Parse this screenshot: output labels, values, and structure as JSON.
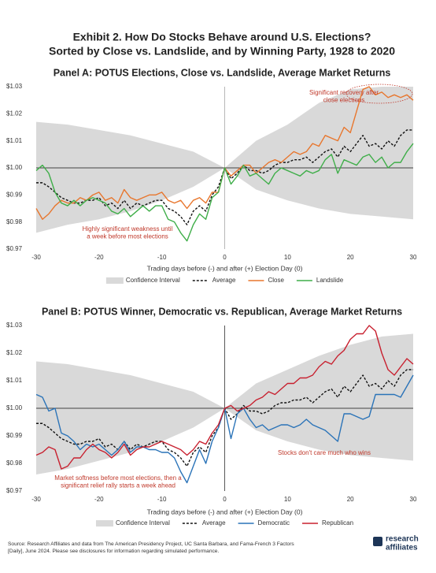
{
  "title": [
    "Exhibit 2. How Do Stocks Behave around U.S. Elections?",
    "Sorted by Close vs. Landslide, and by Winning Party, 1928 to 2020"
  ],
  "chart_data": [
    {
      "type": "line",
      "title": "Panel A: POTUS Elections, Close vs. Landslide, Average Market Returns",
      "xlabel": "Trading days before (-) and after (+) Election Day (0)",
      "x": [
        -30,
        -29,
        -28,
        -27,
        -26,
        -25,
        -24,
        -23,
        -22,
        -21,
        -20,
        -19,
        -18,
        -17,
        -16,
        -15,
        -14,
        -13,
        -12,
        -11,
        -10,
        -9,
        -8,
        -7,
        -6,
        -5,
        -4,
        -3,
        -2,
        -1,
        0,
        1,
        2,
        3,
        4,
        5,
        6,
        7,
        8,
        9,
        10,
        11,
        12,
        13,
        14,
        15,
        16,
        17,
        18,
        19,
        20,
        21,
        22,
        23,
        24,
        25,
        26,
        27,
        28,
        29,
        30
      ],
      "xlim": [
        -30,
        30
      ],
      "xticks": [
        -30,
        -20,
        -10,
        0,
        10,
        20,
        30
      ],
      "ylim": [
        0.97,
        1.03
      ],
      "yticks": [
        {
          "value": 0.97,
          "label": "$0.97"
        },
        {
          "value": 0.98,
          "label": "$0.98"
        },
        {
          "value": 0.99,
          "label": "$0.99"
        },
        {
          "value": 1.0,
          "label": "$1.00"
        },
        {
          "value": 1.01,
          "label": "$1.01"
        },
        {
          "value": 1.02,
          "label": "$1.02"
        },
        {
          "value": 1.03,
          "label": "$1.03"
        }
      ],
      "band": {
        "name": "Confidence Interval",
        "color": "#d9d9d9",
        "x": [
          -30,
          -25,
          -20,
          -15,
          -10,
          -5,
          0,
          5,
          10,
          15,
          20,
          25,
          30
        ],
        "upper": [
          1.017,
          1.016,
          1.014,
          1.012,
          1.009,
          1.006,
          1.0,
          1.01,
          1.016,
          1.024,
          1.029,
          1.03,
          1.03
        ],
        "lower": [
          0.976,
          0.979,
          0.981,
          0.984,
          0.988,
          0.993,
          1.0,
          0.992,
          0.988,
          0.985,
          0.983,
          0.982,
          0.981
        ]
      },
      "series": [
        {
          "name": "Average",
          "color": "#111111",
          "dash": true,
          "values": [
            0.9945,
            0.9945,
            0.993,
            0.991,
            0.989,
            0.988,
            0.987,
            0.987,
            0.988,
            0.988,
            0.989,
            0.986,
            0.987,
            0.985,
            0.988,
            0.985,
            0.987,
            0.986,
            0.987,
            0.988,
            0.988,
            0.985,
            0.984,
            0.982,
            0.979,
            0.984,
            0.986,
            0.984,
            0.99,
            0.993,
            1.0,
            0.996,
            0.998,
            1.001,
            0.999,
            0.999,
            0.998,
            0.999,
            1.001,
            1.002,
            1.002,
            1.003,
            1.003,
            1.004,
            1.002,
            1.004,
            1.006,
            1.007,
            1.004,
            1.008,
            1.006,
            1.009,
            1.012,
            1.008,
            1.009,
            1.007,
            1.01,
            1.008,
            1.012,
            1.014,
            1.014
          ]
        },
        {
          "name": "Close",
          "color": "#e8762d",
          "values": [
            0.985,
            0.981,
            0.983,
            0.986,
            0.988,
            0.987,
            0.987,
            0.989,
            0.988,
            0.99,
            0.991,
            0.988,
            0.989,
            0.987,
            0.992,
            0.989,
            0.988,
            0.989,
            0.99,
            0.99,
            0.991,
            0.988,
            0.987,
            0.988,
            0.985,
            0.988,
            0.989,
            0.987,
            0.991,
            0.991,
            1.0,
            0.997,
            0.999,
            1.001,
            1.001,
            0.998,
            1.0,
            1.002,
            1.003,
            1.002,
            1.004,
            1.006,
            1.005,
            1.006,
            1.009,
            1.008,
            1.012,
            1.011,
            1.01,
            1.015,
            1.013,
            1.021,
            1.029,
            1.03,
            1.027,
            1.028,
            1.026,
            1.027,
            1.026,
            1.027,
            1.025
          ]
        },
        {
          "name": "Landslide",
          "color": "#3fae49",
          "values": [
            0.999,
            1.001,
            0.998,
            0.991,
            0.987,
            0.986,
            0.988,
            0.986,
            0.988,
            0.989,
            0.988,
            0.987,
            0.984,
            0.983,
            0.985,
            0.982,
            0.984,
            0.986,
            0.984,
            0.986,
            0.986,
            0.981,
            0.98,
            0.976,
            0.973,
            0.979,
            0.983,
            0.981,
            0.989,
            0.991,
            1.0,
            0.994,
            0.997,
            1.001,
            0.997,
            0.998,
            0.996,
            0.994,
            0.998,
            1.0,
            0.999,
            0.998,
            0.997,
            0.999,
            0.998,
            0.999,
            1.003,
            1.005,
            0.998,
            1.003,
            1.002,
            1.001,
            1.004,
            1.005,
            1.002,
            1.004,
            1.0,
            1.002,
            1.002,
            1.006,
            1.009
          ]
        }
      ],
      "annotations": [
        {
          "lines": [
            "Significant recovery after",
            "close elections"
          ]
        },
        {
          "lines": [
            "Highly significant weakness until",
            "a week before most elections"
          ]
        }
      ]
    },
    {
      "type": "line",
      "title": "Panel B: POTUS Winner, Democratic vs. Republican, Average Market Returns",
      "xlabel": "Trading days before (-) and after (+) Election Day (0)",
      "x": [
        -30,
        -29,
        -28,
        -27,
        -26,
        -25,
        -24,
        -23,
        -22,
        -21,
        -20,
        -19,
        -18,
        -17,
        -16,
        -15,
        -14,
        -13,
        -12,
        -11,
        -10,
        -9,
        -8,
        -7,
        -6,
        -5,
        -4,
        -3,
        -2,
        -1,
        0,
        1,
        2,
        3,
        4,
        5,
        6,
        7,
        8,
        9,
        10,
        11,
        12,
        13,
        14,
        15,
        16,
        17,
        18,
        19,
        20,
        21,
        22,
        23,
        24,
        25,
        26,
        27,
        28,
        29,
        30
      ],
      "xlim": [
        -30,
        30
      ],
      "xticks": [
        -30,
        -20,
        -10,
        0,
        10,
        20,
        30
      ],
      "ylim": [
        0.97,
        1.03
      ],
      "yticks": [
        {
          "value": 0.97,
          "label": "$0.97"
        },
        {
          "value": 0.98,
          "label": "$0.98"
        },
        {
          "value": 0.99,
          "label": "$0.99"
        },
        {
          "value": 1.0,
          "label": "$1.00"
        },
        {
          "value": 1.01,
          "label": "$1.01"
        },
        {
          "value": 1.02,
          "label": "$1.02"
        },
        {
          "value": 1.03,
          "label": "$1.03"
        }
      ],
      "band": {
        "name": "Confidence Interval",
        "color": "#d9d9d9",
        "x": [
          -30,
          -25,
          -20,
          -15,
          -10,
          -5,
          0,
          5,
          10,
          15,
          20,
          25,
          30
        ],
        "upper": [
          1.017,
          1.016,
          1.014,
          1.012,
          1.009,
          1.006,
          1.0,
          1.009,
          1.014,
          1.019,
          1.023,
          1.026,
          1.027
        ],
        "lower": [
          0.976,
          0.978,
          0.981,
          0.984,
          0.988,
          0.993,
          1.0,
          0.992,
          0.988,
          0.985,
          0.983,
          0.982,
          0.981
        ]
      },
      "series": [
        {
          "name": "Average",
          "color": "#111111",
          "dash": true,
          "values": [
            0.9945,
            0.9945,
            0.993,
            0.991,
            0.989,
            0.988,
            0.987,
            0.987,
            0.988,
            0.988,
            0.989,
            0.986,
            0.987,
            0.985,
            0.988,
            0.985,
            0.987,
            0.986,
            0.987,
            0.988,
            0.988,
            0.985,
            0.984,
            0.982,
            0.979,
            0.984,
            0.986,
            0.984,
            0.99,
            0.993,
            1.0,
            0.996,
            0.998,
            1.001,
            0.999,
            0.999,
            0.998,
            0.999,
            1.001,
            1.002,
            1.002,
            1.003,
            1.003,
            1.004,
            1.002,
            1.004,
            1.006,
            1.007,
            1.004,
            1.008,
            1.006,
            1.009,
            1.012,
            1.008,
            1.009,
            1.007,
            1.01,
            1.008,
            1.012,
            1.014,
            1.014
          ]
        },
        {
          "name": "Democratic",
          "color": "#2a73b8",
          "values": [
            1.005,
            1.004,
            0.999,
            1.0,
            0.991,
            0.99,
            0.988,
            0.985,
            0.987,
            0.986,
            0.987,
            0.985,
            0.983,
            0.985,
            0.988,
            0.984,
            0.986,
            0.986,
            0.985,
            0.985,
            0.984,
            0.984,
            0.982,
            0.977,
            0.973,
            0.979,
            0.985,
            0.98,
            0.988,
            0.993,
            1.0,
            0.989,
            0.998,
            1.0,
            0.996,
            0.993,
            0.994,
            0.992,
            0.993,
            0.994,
            0.994,
            0.993,
            0.994,
            0.996,
            0.994,
            0.993,
            0.992,
            0.99,
            0.988,
            0.998,
            0.998,
            0.997,
            0.996,
            0.997,
            1.005,
            1.005,
            1.005,
            1.005,
            1.004,
            1.008,
            1.012
          ]
        },
        {
          "name": "Republican",
          "color": "#c8202f",
          "values": [
            0.983,
            0.984,
            0.986,
            0.985,
            0.978,
            0.979,
            0.982,
            0.982,
            0.985,
            0.987,
            0.985,
            0.984,
            0.982,
            0.984,
            0.987,
            0.983,
            0.985,
            0.986,
            0.986,
            0.987,
            0.988,
            0.987,
            0.986,
            0.985,
            0.983,
            0.985,
            0.988,
            0.987,
            0.991,
            0.994,
            1.0,
            1.001,
            0.999,
            1.0,
            1.001,
            1.003,
            1.004,
            1.006,
            1.005,
            1.007,
            1.009,
            1.009,
            1.011,
            1.011,
            1.012,
            1.015,
            1.017,
            1.016,
            1.019,
            1.021,
            1.025,
            1.027,
            1.027,
            1.03,
            1.028,
            1.02,
            1.014,
            1.012,
            1.015,
            1.018,
            1.016
          ]
        }
      ],
      "annotations": [
        {
          "lines": [
            "Market softness before most elections, then a",
            "significant relief rally starts a week ahead"
          ]
        },
        {
          "lines": [
            "Stocks don't care much who wins"
          ]
        }
      ]
    }
  ],
  "source": [
    "Source: Research Affiliates and data from The American Presidency Project, UC Santa Barbara, and Fama-French 3 Factors",
    "[Daily], June 2024. Please see disclosures for information regarding simulated performance."
  ],
  "logo": [
    "research",
    "affiliates"
  ]
}
